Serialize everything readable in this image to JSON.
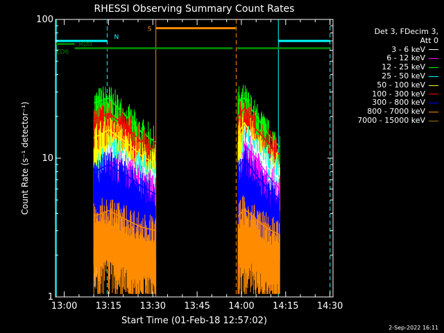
{
  "chart_data": {
    "type": "line",
    "title": "RHESSI Observing Summary Count Rates",
    "xlabel": "Start Time (01-Feb-18 12:57:02)",
    "ylabel": "Count Rate (s⁻¹ detector⁻¹)",
    "yscale": "log",
    "ylim": [
      1,
      100
    ],
    "xlim_minutes_after_start": [
      0,
      94
    ],
    "x_tick_labels": [
      "13:00",
      "13:15",
      "13:30",
      "13:45",
      "14:00",
      "14:15",
      "14:30"
    ],
    "x_tick_minutes": [
      2.97,
      17.97,
      32.97,
      47.97,
      62.97,
      77.97,
      92.97
    ],
    "y_tick_labels": [
      "1",
      "10",
      "100"
    ],
    "y_tick_values": [
      1,
      10,
      100
    ],
    "legend_title": [
      "Det 3, FDecim 3,",
      "Att 0"
    ],
    "legend_position": "right",
    "series": [
      {
        "name": "3 - 6 keV",
        "color": "#ffffff",
        "segments": [
          {
            "x": [
              13.0,
              18.0,
              24.0,
              29.0,
              34.0
            ],
            "y": [
              5.0,
              10.5,
              9.0,
              7.8,
              6.5
            ]
          },
          {
            "x": [
              61.8,
              64.0,
              68.0,
              72.0,
              76.0
            ],
            "y": [
              4.0,
              14.0,
              11.0,
              8.5,
              7.0
            ]
          }
        ]
      },
      {
        "name": "6 - 12 keV",
        "color": "#ff00ff",
        "segments": [
          {
            "x": [
              13.0,
              18.0,
              24.0,
              29.0,
              34.0
            ],
            "y": [
              5.0,
              9.5,
              8.5,
              7.0,
              6.0
            ]
          },
          {
            "x": [
              61.8,
              64.0,
              68.0,
              72.0,
              76.0
            ],
            "y": [
              3.5,
              12.5,
              10.0,
              7.5,
              6.0
            ]
          }
        ]
      },
      {
        "name": "12 - 25 keV",
        "color": "#00ff00",
        "segments": [
          {
            "x": [
              13.0,
              18.0,
              24.0,
              29.0,
              34.0
            ],
            "y": [
              25.0,
              27.0,
              20.0,
              15.5,
              13.0
            ]
          },
          {
            "x": [
              61.8,
              64.0,
              68.0,
              72.0,
              76.0
            ],
            "y": [
              26.0,
              27.0,
              20.0,
              15.0,
              12.0
            ]
          }
        ]
      },
      {
        "name": "25 - 50 keV",
        "color": "#00ffff",
        "segments": [
          {
            "x": [
              13.0,
              18.0,
              24.0,
              29.0,
              34.0
            ],
            "y": [
              7.0,
              11.5,
              10.0,
              8.5,
              7.5
            ]
          },
          {
            "x": [
              61.8,
              64.0,
              68.0,
              72.0,
              76.0
            ],
            "y": [
              6.0,
              15.0,
              12.0,
              9.0,
              7.5
            ]
          }
        ]
      },
      {
        "name": "50 - 100 keV",
        "color": "#ffff00",
        "segments": [
          {
            "x": [
              13.0,
              18.0,
              24.0,
              29.0,
              34.0
            ],
            "y": [
              14.0,
              16.0,
              13.0,
              10.5,
              9.0
            ]
          },
          {
            "x": [
              61.8,
              64.0,
              68.0,
              72.0,
              76.0
            ],
            "y": [
              15.0,
              18.0,
              13.0,
              10.0,
              8.5
            ]
          }
        ]
      },
      {
        "name": "100 - 300 keV",
        "color": "#ff0000",
        "segments": [
          {
            "x": [
              13.0,
              18.0,
              24.0,
              29.0,
              34.0
            ],
            "y": [
              19.0,
              21.0,
              17.0,
              13.0,
              11.0
            ]
          },
          {
            "x": [
              61.8,
              64.0,
              68.0,
              72.0,
              76.0
            ],
            "y": [
              20.0,
              23.0,
              16.0,
              13.0,
              10.5
            ]
          }
        ]
      },
      {
        "name": "300 - 800 keV",
        "color": "#0000ff",
        "segments": [
          {
            "x": [
              13.0,
              18.0,
              24.0,
              29.0,
              34.0
            ],
            "y": [
              8.0,
              9.0,
              7.5,
              6.3,
              5.5
            ]
          },
          {
            "x": [
              61.8,
              64.0,
              68.0,
              72.0,
              76.0
            ],
            "y": [
              8.5,
              10.0,
              7.5,
              6.0,
              5.0
            ]
          }
        ]
      },
      {
        "name": "800 - 7000 keV",
        "color": "#ff8c00",
        "segments": [
          {
            "x": [
              13.0,
              18.0,
              24.0,
              29.0,
              34.0
            ],
            "y": [
              3.8,
              4.2,
              3.6,
              3.2,
              3.0
            ]
          },
          {
            "x": [
              61.8,
              64.0,
              68.0,
              72.0,
              76.0
            ],
            "y": [
              3.8,
              4.3,
              3.6,
              3.1,
              2.8
            ]
          }
        ]
      },
      {
        "name": "7000 - 15000 keV",
        "color": "#a07810",
        "segments": []
      }
    ],
    "flag_bars": [
      {
        "label": "N",
        "color": "#00ffff",
        "y": 70,
        "segments": [
          [
            0,
            17.5
          ],
          [
            75.5,
            93
          ]
        ]
      },
      {
        "label": "RD0",
        "color": "#008000",
        "y": 66.5,
        "segments": [
          [
            0,
            6.5
          ]
        ]
      },
      {
        "label": "S",
        "color": "#ff8c00",
        "y": 86.5,
        "segments": [
          [
            34,
            61
          ]
        ]
      },
      {
        "label": "ED6",
        "color": "#008000",
        "y": 62,
        "segments": [
          [
            6.5,
            25.5
          ],
          [
            25.5,
            60
          ],
          [
            61.5,
            69
          ],
          [
            68.5,
            93
          ]
        ]
      }
    ],
    "vertical_markers": [
      {
        "color": "#00ffff",
        "style": "solid",
        "x": 0.3
      },
      {
        "color": "#00ffff",
        "style": "dashed",
        "x": 17.5
      },
      {
        "color": "#ff8c00",
        "style": "solid",
        "x": 34.0
      },
      {
        "color": "#ff8c00",
        "style": "dashed",
        "x": 61.2
      },
      {
        "color": "#00ffff",
        "style": "solid",
        "x": 75.5
      },
      {
        "color": "#00ffff",
        "style": "dashed",
        "x": 93.0
      }
    ]
  },
  "footer": {
    "timestamp": "2-Sep-2022 16:11"
  }
}
